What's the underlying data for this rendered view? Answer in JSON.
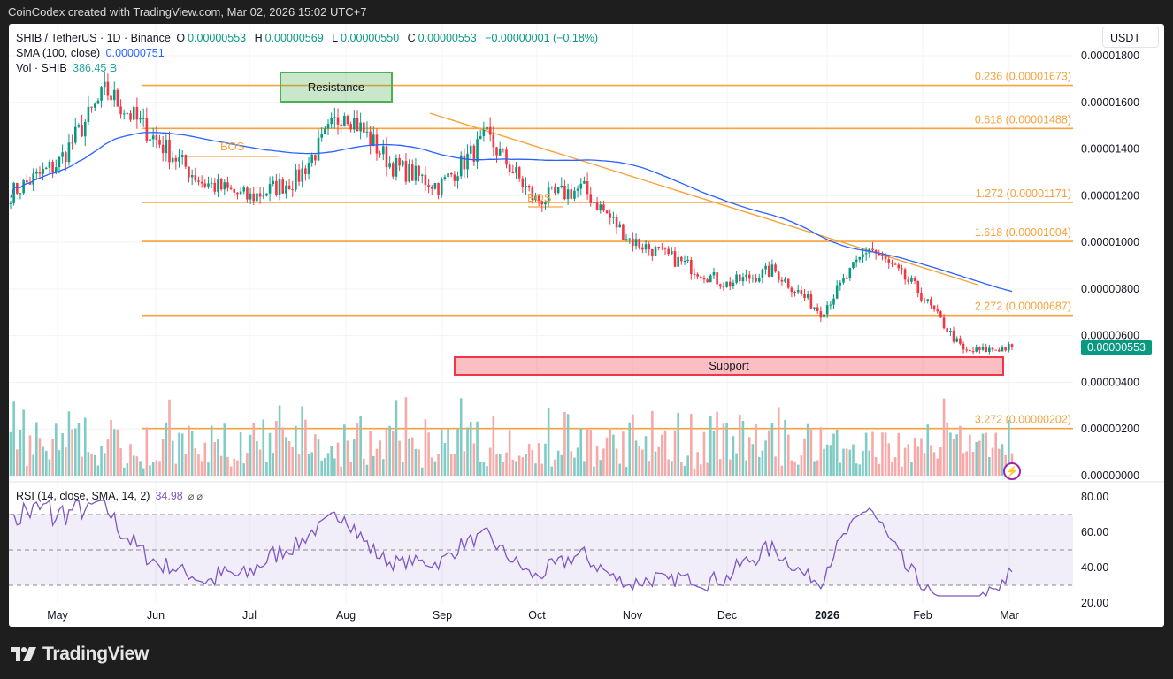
{
  "topbar": {
    "caption": "CoinCodex created with TradingView.com, Mar 02, 2026 15:02 UTC+7"
  },
  "legend": {
    "symbol": "SHIB / TetherUS · 1D · Binance",
    "open_label": "O",
    "open": "0.00000553",
    "high_label": "H",
    "high": "0.00000569",
    "low_label": "L",
    "low": "0.00000550",
    "close_label": "C",
    "close": "0.00000553",
    "change": "−0.00000001 (−0.18%)",
    "sma_label": "SMA (100, close)",
    "sma_value": "0.00000751",
    "vol_label": "Vol · SHIB",
    "vol_value": "386.45 B"
  },
  "currency_button": "USDT",
  "last_price_tag": "0.00000553",
  "annotations": {
    "resistance": "Resistance",
    "support": "Support",
    "bos_1": "BOS",
    "bos_2": "BOS"
  },
  "rsi_legend": {
    "label": "RSI (14, close, SMA, 14, 2)",
    "value": "34.98",
    "icons": "⌀ ⌀"
  },
  "brand": {
    "name": "TradingView"
  },
  "colors": {
    "up": "#089981",
    "down": "#f23645",
    "sma": "#2962ff",
    "fib": "#f7a23c",
    "rsi": "#7e57c2",
    "vol_up": "#80cbc4",
    "vol_down": "#f7a9a7"
  },
  "chart_data": {
    "type": "candlestick",
    "title": "SHIB / TetherUS · 1D · Binance",
    "xlabel": "",
    "ylabel": "USDT",
    "x_ticks": [
      "May",
      "Jun",
      "Jul",
      "Aug",
      "Sep",
      "Oct",
      "Nov",
      "Dec",
      "2026",
      "Feb",
      "Mar"
    ],
    "y_ticks": [
      "0.00001800",
      "0.00001600",
      "0.00001400",
      "0.00001200",
      "0.00001000",
      "0.00000800",
      "0.00000600",
      "0.00000400",
      "0.00000200",
      "0.00000000"
    ],
    "ylim": [
      0,
      1.8e-05
    ],
    "fib_levels": [
      {
        "label": "0.236 (0.00001673)",
        "ratio": 0.236,
        "price": 1.673e-05
      },
      {
        "label": "0.618 (0.00001488)",
        "ratio": 0.618,
        "price": 1.488e-05
      },
      {
        "label": "1.272 (0.00001171)",
        "ratio": 1.272,
        "price": 1.171e-05
      },
      {
        "label": "1.618 (0.00001004)",
        "ratio": 1.618,
        "price": 1.004e-05
      },
      {
        "label": "2.272 (0.00000687)",
        "ratio": 2.272,
        "price": 6.87e-06
      },
      {
        "label": "3.272 (0.00000202)",
        "ratio": 3.272,
        "price": 2.02e-06
      }
    ],
    "zones": {
      "resistance": [
        1.61e-05,
        1.73e-05
      ],
      "support": [
        4.3e-06,
        5.1e-06
      ]
    },
    "close_path_approx": {
      "months": [
        "Apr",
        "May",
        "May",
        "Jun",
        "Jun",
        "Jul",
        "Jul",
        "Aug",
        "Aug",
        "Sep",
        "Sep",
        "Oct",
        "Oct",
        "Nov",
        "Nov",
        "Dec",
        "Dec",
        "Jan",
        "Jan",
        "Feb",
        "Feb",
        "Mar"
      ],
      "prices": [
        1.21e-05,
        1.34e-05,
        1.65e-05,
        1.45e-05,
        1.26e-05,
        1.19e-05,
        1.27e-05,
        1.57e-05,
        1.33e-05,
        1.24e-05,
        1.45e-05,
        1.18e-05,
        1.23e-05,
        1.01e-05,
        9.2e-06,
        8.2e-06,
        8.8e-06,
        7e-06,
        9.8e-06,
        8e-06,
        5.3e-06,
        5.5e-06
      ]
    },
    "sma100_last": 7.51e-06,
    "last_close": 5.53e-06,
    "rsi": {
      "label": "RSI (14, close, SMA, 14, 2)",
      "last": 34.98,
      "bands": [
        30,
        50,
        70
      ],
      "ylim": [
        20,
        80
      ],
      "y_ticks": [
        "80.00",
        "60.00",
        "40.00",
        "20.00"
      ]
    },
    "volume": {
      "last": "386.45 B"
    }
  }
}
